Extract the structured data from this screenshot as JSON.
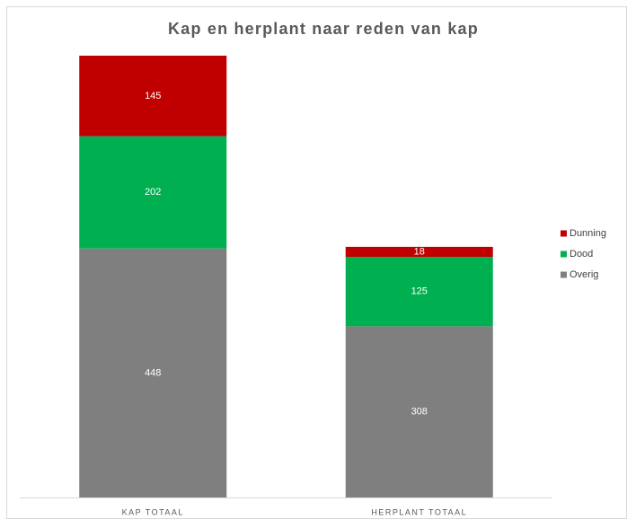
{
  "chart_data": {
    "type": "stacked_bar",
    "title": "Kap en herplant naar reden van kap",
    "categories": [
      "KAP TOTAAL",
      "HERPLANT TOTAAL"
    ],
    "series": [
      {
        "name": "Overig",
        "color": "#7f7f7f",
        "values": [
          448,
          308
        ]
      },
      {
        "name": "Dood",
        "color": "#00b050",
        "values": [
          202,
          125
        ]
      },
      {
        "name": "Dunning",
        "color": "#c00000",
        "values": [
          145,
          18
        ]
      }
    ],
    "legend": "right"
  }
}
